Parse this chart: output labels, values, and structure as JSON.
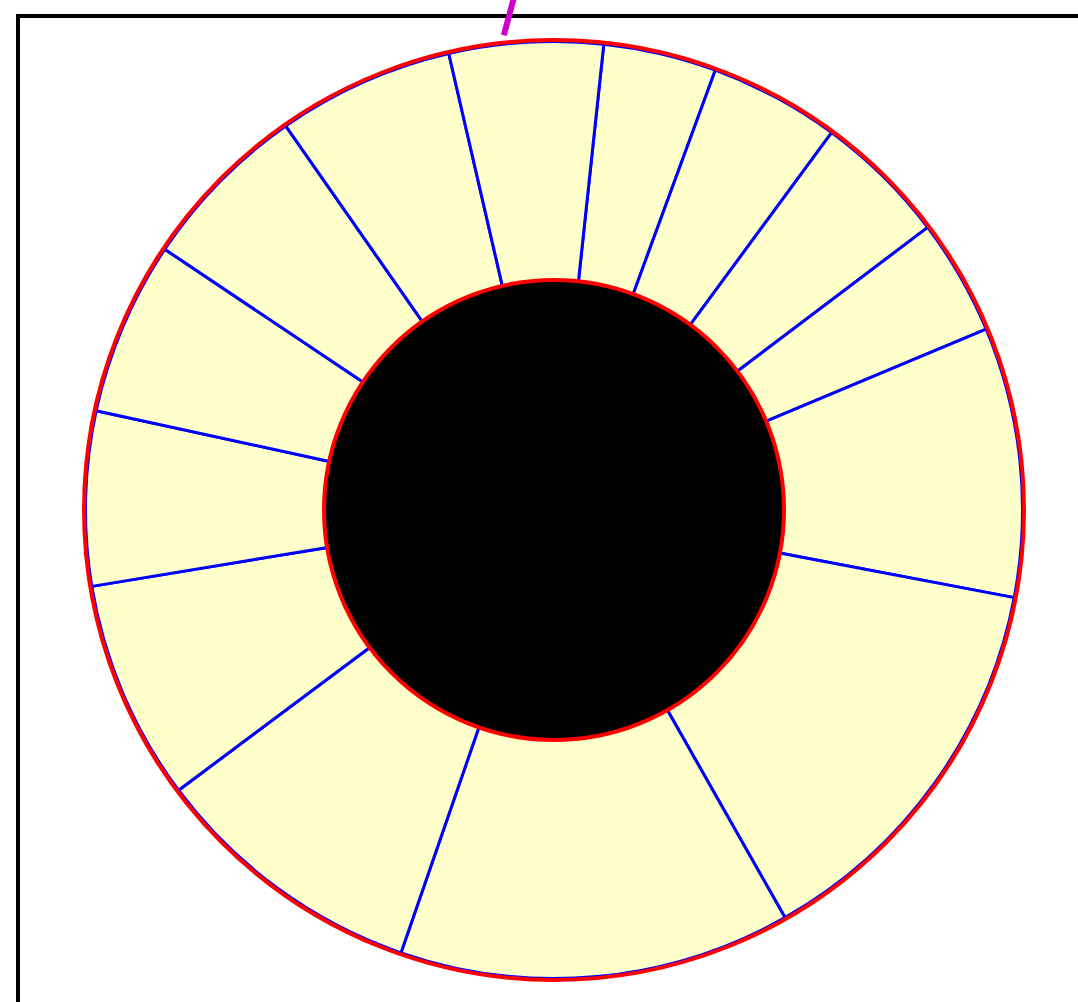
{
  "chart_data": {
    "type": "donut",
    "categories": [
      null,
      null,
      null,
      null,
      null,
      null,
      null,
      null,
      null,
      null,
      null,
      null,
      null,
      null
    ],
    "values": [
      3.9,
      4.5,
      4.6,
      4.0,
      9.3,
      13.8,
      13.5,
      9.5,
      7.6,
      6.0,
      6.0,
      5.9,
      6.1,
      5.3
    ],
    "colors": [
      "#ffffcc",
      "#ffffcc",
      "#ffffcc",
      "#ffffcc",
      "#ffffcc",
      "#ffffcc",
      "#ffffcc",
      "#ffffcc",
      "#ffffcc",
      "#ffffcc",
      "#ffffcc",
      "#ffffcc",
      "#ffffcc",
      "#ffffcc"
    ],
    "legend": false
  }
}
